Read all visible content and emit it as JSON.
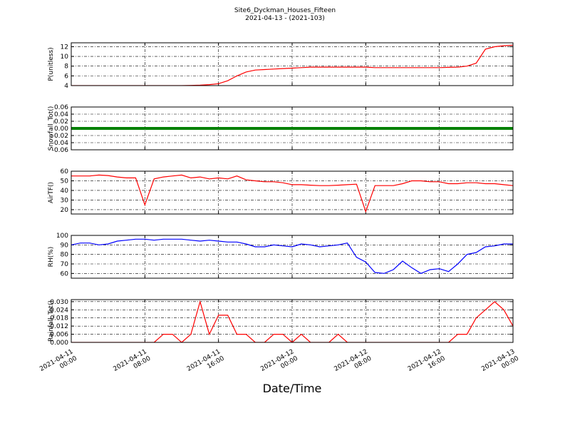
{
  "chart_data": {
    "type": "line",
    "title": "Site6_Dyckman_Houses_Fifteen",
    "subtitle": "2021-04-13 - (2021-103)",
    "xlabel": "Date/Time",
    "xlim": [
      "2021-04-11 00:00",
      "2021-04-13 00:00"
    ],
    "xticks": [
      "2021-04-11 00:00",
      "2021-04-11 08:00",
      "2021-04-11 16:00",
      "2021-04-12 00:00",
      "2021-04-12 08:00",
      "2021-04-12 16:00",
      "2021-04-13 00:00"
    ],
    "grid": true,
    "x": [
      "2021-04-11 00:00",
      "2021-04-11 01:00",
      "2021-04-11 02:00",
      "2021-04-11 03:00",
      "2021-04-11 04:00",
      "2021-04-11 05:00",
      "2021-04-11 06:00",
      "2021-04-11 07:00",
      "2021-04-11 08:00",
      "2021-04-11 09:00",
      "2021-04-11 10:00",
      "2021-04-11 11:00",
      "2021-04-11 12:00",
      "2021-04-11 13:00",
      "2021-04-11 14:00",
      "2021-04-11 15:00",
      "2021-04-11 16:00",
      "2021-04-11 17:00",
      "2021-04-11 18:00",
      "2021-04-11 19:00",
      "2021-04-11 20:00",
      "2021-04-11 21:00",
      "2021-04-11 22:00",
      "2021-04-11 23:00",
      "2021-04-12 00:00",
      "2021-04-12 01:00",
      "2021-04-12 02:00",
      "2021-04-12 03:00",
      "2021-04-12 04:00",
      "2021-04-12 05:00",
      "2021-04-12 06:00",
      "2021-04-12 07:00",
      "2021-04-12 08:00",
      "2021-04-12 09:00",
      "2021-04-12 10:00",
      "2021-04-12 11:00",
      "2021-04-12 12:00",
      "2021-04-12 13:00",
      "2021-04-12 14:00",
      "2021-04-12 15:00",
      "2021-04-12 16:00",
      "2021-04-12 17:00",
      "2021-04-12 18:00",
      "2021-04-12 19:00",
      "2021-04-12 20:00",
      "2021-04-12 21:00",
      "2021-04-12 22:00",
      "2021-04-12 23:00",
      "2021-04-13 00:00"
    ],
    "panels": [
      {
        "ylabel": "P(unitless)",
        "color": "#ff0000",
        "ylim": [
          4,
          12.8
        ],
        "yticks": [
          4,
          6,
          8,
          10,
          12
        ],
        "values": [
          4,
          4,
          4,
          4,
          4,
          4,
          4,
          4,
          4,
          4,
          4,
          4,
          4,
          4.05,
          4.1,
          4.2,
          4.4,
          5.0,
          6.0,
          6.8,
          7.2,
          7.3,
          7.4,
          7.5,
          7.6,
          7.7,
          7.8,
          7.8,
          7.8,
          7.8,
          7.8,
          7.8,
          7.8,
          7.7,
          7.7,
          7.7,
          7.7,
          7.7,
          7.7,
          7.7,
          7.7,
          7.75,
          7.8,
          8.0,
          8.6,
          11.5,
          12.0,
          12.2,
          12.3
        ]
      },
      {
        "ylabel": "Snowfall_Tot()",
        "color": "#008000",
        "ylim": [
          -0.06,
          0.06
        ],
        "yticks": [
          -0.06,
          -0.04,
          -0.02,
          {
            "value": 0,
            "label": "0.00"
          },
          0.02,
          0.04,
          0.06
        ],
        "values": [
          0,
          0,
          0,
          0,
          0,
          0,
          0,
          0,
          0,
          0,
          0,
          0,
          0,
          0,
          0,
          0,
          0,
          0,
          0,
          0,
          0,
          0,
          0,
          0,
          0,
          0,
          0,
          0,
          0,
          0,
          0,
          0,
          0,
          0,
          0,
          0,
          0,
          0,
          0,
          0,
          0,
          0,
          0,
          0,
          0,
          0,
          0,
          0,
          0
        ]
      },
      {
        "ylabel": "AirTF()",
        "color": "#ff0000",
        "ylim": [
          15.5,
          60
        ],
        "yticks": [
          20,
          30,
          40,
          50,
          60
        ],
        "values": [
          55,
          55,
          55,
          56,
          55.5,
          54,
          53,
          53,
          25,
          52,
          54,
          55,
          56,
          53,
          54,
          52,
          53,
          52,
          55,
          51,
          50,
          49,
          49,
          48,
          46,
          46,
          45.5,
          45,
          45,
          45.5,
          46,
          46.5,
          18,
          45,
          45,
          45,
          47,
          50,
          50,
          49,
          49,
          47,
          47,
          48,
          48,
          47,
          47,
          46,
          45
        ]
      },
      {
        "ylabel": "RH(%)",
        "color": "#0000ff",
        "ylim": [
          55,
          100
        ],
        "yticks": [
          60,
          70,
          80,
          90,
          100
        ],
        "values": [
          90,
          92,
          92,
          90,
          91,
          94,
          95,
          96,
          96,
          95,
          96,
          96,
          96,
          95,
          94,
          95,
          94,
          93,
          93,
          91,
          88,
          88,
          90,
          89,
          88,
          91,
          90,
          88,
          89,
          90,
          92,
          77,
          72,
          61,
          60,
          64,
          73,
          66,
          60,
          64,
          65,
          62,
          70,
          80,
          82,
          88,
          89,
          91,
          91
        ]
      },
      {
        "ylabel": "Rainfall_Tot()",
        "color": "#ff0000",
        "ylim": [
          0,
          0.0315
        ],
        "yticks": [
          {
            "value": 0,
            "label": "0.000"
          },
          0.006,
          0.012,
          0.018,
          0.024,
          {
            "value": 0.03,
            "label": "0.030"
          }
        ],
        "values": [
          0,
          0,
          0,
          0,
          0,
          0,
          0,
          0,
          0,
          0,
          0.006,
          0.006,
          0,
          0.006,
          0.03,
          0.006,
          0.02,
          0.02,
          0.006,
          0.006,
          0,
          0,
          0.006,
          0.006,
          0,
          0.006,
          0,
          0,
          0,
          0.006,
          0,
          0,
          0,
          0,
          0,
          0,
          0,
          0,
          0,
          0,
          0,
          0,
          0.006,
          0.006,
          0.018,
          0.024,
          0.03,
          0.024,
          0.012
        ]
      }
    ]
  }
}
